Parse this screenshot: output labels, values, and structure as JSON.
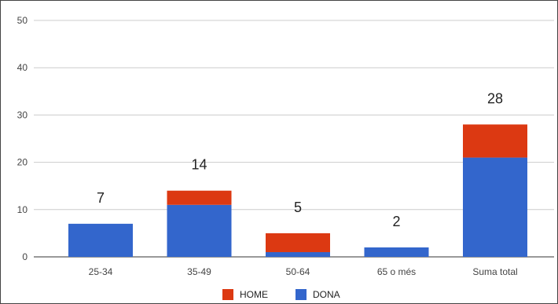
{
  "chart_data": {
    "type": "bar",
    "stacked": true,
    "categories": [
      "25-34",
      "35-49",
      "50-64",
      "65 o més",
      "Suma total"
    ],
    "series": [
      {
        "name": "DONA",
        "color": "#3366cc",
        "values": [
          7,
          11,
          1,
          2,
          21
        ]
      },
      {
        "name": "HOME",
        "color": "#dc3912",
        "values": [
          0,
          3,
          4,
          0,
          7
        ]
      }
    ],
    "totals": [
      7,
      14,
      5,
      2,
      28
    ],
    "yticks": [
      0,
      10,
      20,
      30,
      40,
      50
    ],
    "ylim": [
      0,
      50
    ],
    "grid": true,
    "legend_position": "bottom",
    "legend_order": [
      "HOME",
      "DONA"
    ]
  }
}
